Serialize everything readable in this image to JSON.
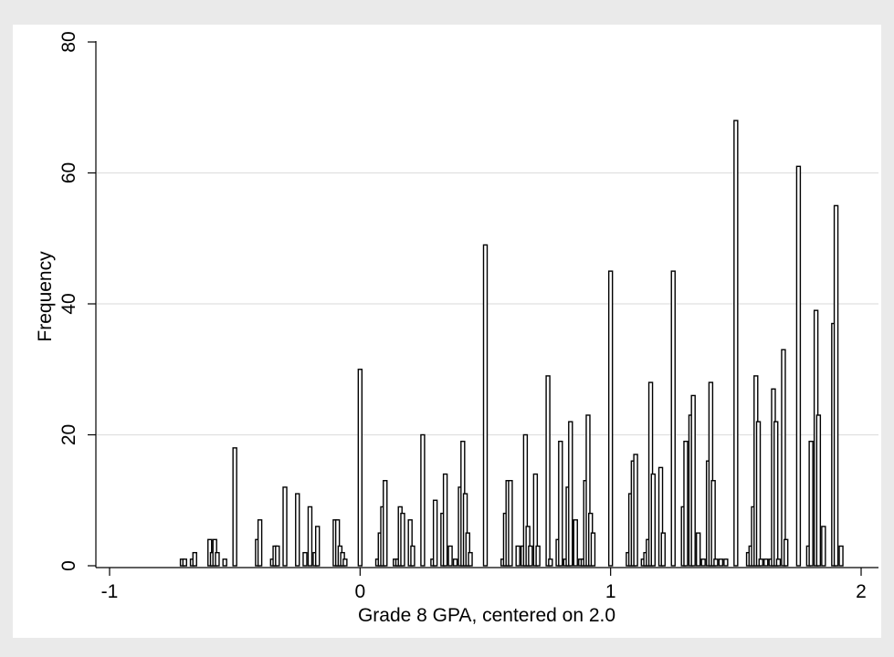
{
  "chart_data": {
    "type": "bar",
    "title": "",
    "xlabel": "Grade 8 GPA, centered on 2.0",
    "ylabel": "Frequency",
    "xlim": [
      -1,
      2
    ],
    "ylim": [
      0,
      80
    ],
    "xticks": [
      "-1",
      "0",
      "1",
      "2"
    ],
    "yticks": [
      "0",
      "20",
      "40",
      "60",
      "80"
    ],
    "grid": "horizontal",
    "legend": "none",
    "colors": {
      "background": "#eaeaea",
      "plot_background": "#ffffff",
      "bar": "#000000",
      "grid": "#e0e0e0"
    },
    "points": [
      [
        -0.71,
        1
      ],
      [
        -0.7,
        1
      ],
      [
        -0.67,
        1
      ],
      [
        -0.66,
        2
      ],
      [
        -0.6,
        4
      ],
      [
        -0.59,
        2
      ],
      [
        -0.58,
        4
      ],
      [
        -0.57,
        2
      ],
      [
        -0.54,
        1
      ],
      [
        -0.5,
        18
      ],
      [
        -0.41,
        4
      ],
      [
        -0.4,
        7
      ],
      [
        -0.35,
        1
      ],
      [
        -0.34,
        3
      ],
      [
        -0.33,
        3
      ],
      [
        -0.3,
        12
      ],
      [
        -0.25,
        11
      ],
      [
        -0.22,
        2
      ],
      [
        -0.2,
        9
      ],
      [
        -0.18,
        2
      ],
      [
        -0.17,
        6
      ],
      [
        -0.1,
        7
      ],
      [
        -0.09,
        7
      ],
      [
        -0.08,
        3
      ],
      [
        -0.07,
        2
      ],
      [
        -0.06,
        1
      ],
      [
        0.0,
        30
      ],
      [
        0.07,
        1
      ],
      [
        0.08,
        5
      ],
      [
        0.09,
        9
      ],
      [
        0.1,
        13
      ],
      [
        0.14,
        1
      ],
      [
        0.15,
        1
      ],
      [
        0.16,
        9
      ],
      [
        0.17,
        8
      ],
      [
        0.2,
        7
      ],
      [
        0.21,
        3
      ],
      [
        0.25,
        20
      ],
      [
        0.29,
        1
      ],
      [
        0.3,
        10
      ],
      [
        0.33,
        8
      ],
      [
        0.34,
        14
      ],
      [
        0.36,
        3
      ],
      [
        0.38,
        1
      ],
      [
        0.4,
        12
      ],
      [
        0.41,
        19
      ],
      [
        0.42,
        11
      ],
      [
        0.43,
        5
      ],
      [
        0.44,
        2
      ],
      [
        0.5,
        49
      ],
      [
        0.57,
        1
      ],
      [
        0.58,
        8
      ],
      [
        0.59,
        13
      ],
      [
        0.6,
        13
      ],
      [
        0.63,
        3
      ],
      [
        0.65,
        3
      ],
      [
        0.66,
        20
      ],
      [
        0.67,
        6
      ],
      [
        0.68,
        3
      ],
      [
        0.7,
        14
      ],
      [
        0.71,
        3
      ],
      [
        0.75,
        29
      ],
      [
        0.76,
        1
      ],
      [
        0.79,
        4
      ],
      [
        0.8,
        19
      ],
      [
        0.82,
        1
      ],
      [
        0.83,
        12
      ],
      [
        0.84,
        22
      ],
      [
        0.86,
        7
      ],
      [
        0.88,
        1
      ],
      [
        0.89,
        1
      ],
      [
        0.9,
        13
      ],
      [
        0.91,
        23
      ],
      [
        0.92,
        8
      ],
      [
        0.93,
        5
      ],
      [
        1.0,
        45
      ],
      [
        1.07,
        2
      ],
      [
        1.08,
        11
      ],
      [
        1.09,
        16
      ],
      [
        1.1,
        17
      ],
      [
        1.13,
        1
      ],
      [
        1.14,
        2
      ],
      [
        1.15,
        4
      ],
      [
        1.16,
        28
      ],
      [
        1.17,
        14
      ],
      [
        1.2,
        15
      ],
      [
        1.21,
        5
      ],
      [
        1.25,
        45
      ],
      [
        1.29,
        9
      ],
      [
        1.3,
        19
      ],
      [
        1.32,
        23
      ],
      [
        1.33,
        26
      ],
      [
        1.35,
        5
      ],
      [
        1.37,
        1
      ],
      [
        1.39,
        16
      ],
      [
        1.4,
        28
      ],
      [
        1.41,
        13
      ],
      [
        1.42,
        1
      ],
      [
        1.44,
        1
      ],
      [
        1.46,
        1
      ],
      [
        1.5,
        68
      ],
      [
        1.55,
        2
      ],
      [
        1.56,
        3
      ],
      [
        1.57,
        9
      ],
      [
        1.58,
        29
      ],
      [
        1.59,
        22
      ],
      [
        1.6,
        1
      ],
      [
        1.62,
        1
      ],
      [
        1.64,
        1
      ],
      [
        1.65,
        27
      ],
      [
        1.66,
        22
      ],
      [
        1.67,
        1
      ],
      [
        1.69,
        33
      ],
      [
        1.7,
        4
      ],
      [
        1.75,
        61
      ],
      [
        1.79,
        3
      ],
      [
        1.8,
        19
      ],
      [
        1.82,
        39
      ],
      [
        1.83,
        23
      ],
      [
        1.85,
        6
      ],
      [
        1.89,
        37
      ],
      [
        1.9,
        55
      ],
      [
        1.92,
        3
      ]
    ]
  }
}
